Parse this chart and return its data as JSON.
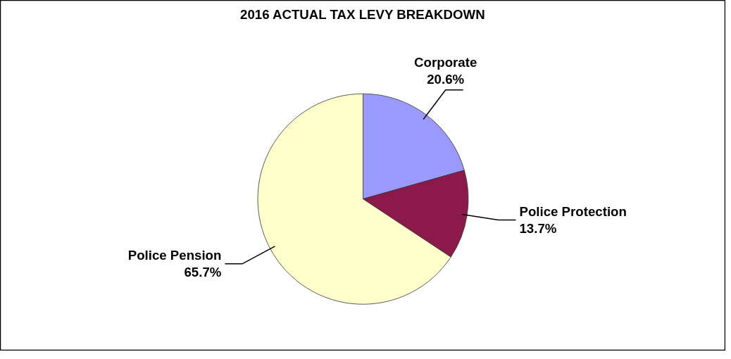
{
  "chart_data": {
    "type": "pie",
    "title": "2016 ACTUAL TAX LEVY BREAKDOWN",
    "categories": [
      "Corporate",
      "Police Protection",
      "Police Pension"
    ],
    "values": [
      20.6,
      13.7,
      65.7
    ],
    "value_labels": [
      "20.6%",
      "13.7%",
      "65.7%"
    ],
    "colors": [
      "#9999ff",
      "#8b1a4a",
      "#ffffcc"
    ]
  }
}
